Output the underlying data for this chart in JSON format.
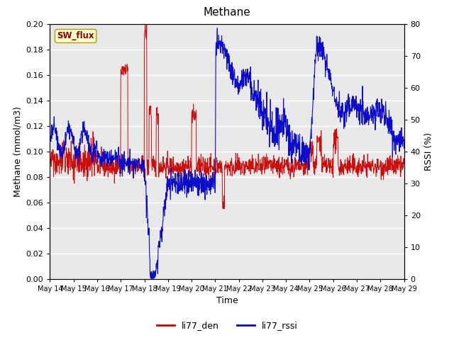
{
  "title": "Methane",
  "xlabel": "Time",
  "ylabel_left": "Methane (mmol/m3)",
  "ylabel_right": "RSSI (%)",
  "legend_label1": "li77_den",
  "legend_label2": "li77_rssi",
  "station_label": "SW_flux",
  "color_den": "#cc0000",
  "color_rssi": "#0000cc",
  "ylim_left": [
    0.0,
    0.2
  ],
  "ylim_right": [
    0,
    80
  ],
  "yticks_left": [
    0.0,
    0.02,
    0.04,
    0.06,
    0.08,
    0.1,
    0.12,
    0.14,
    0.16,
    0.18,
    0.2
  ],
  "yticks_right": [
    0,
    10,
    20,
    30,
    40,
    50,
    60,
    70,
    80
  ],
  "bg_color": "#e8e8e8",
  "fig_bg_color": "#ffffff",
  "n_days": 15,
  "xtick_labels": [
    "May 14",
    "May 15",
    "May 16",
    "May 17",
    "May 18",
    "May 19",
    "May 20",
    "May 21",
    "May 22",
    "May 23",
    "May 24",
    "May 25",
    "May 26",
    "May 27",
    "May 28",
    "May 29"
  ],
  "title_fontsize": 11,
  "label_fontsize": 9,
  "tick_fontsize": 8
}
